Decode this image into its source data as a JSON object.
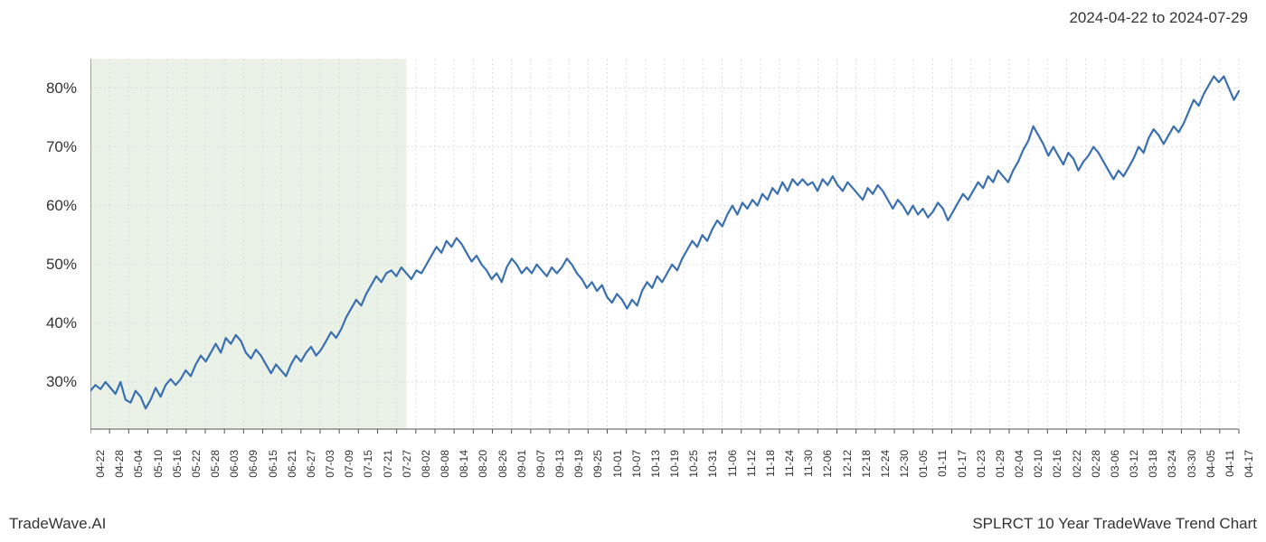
{
  "header": {
    "date_range": "2024-04-22 to 2024-07-29"
  },
  "footer": {
    "left": "TradeWave.AI",
    "right": "SPLRCT 10 Year TradeWave Trend Chart"
  },
  "chart": {
    "type": "line",
    "background_color": "#ffffff",
    "line_color": "#3a6fb0",
    "line_width": 2.2,
    "highlight_fill": "#d9e8d5",
    "highlight_opacity": 0.55,
    "highlight_range_x": [
      "04-22",
      "07-29"
    ],
    "grid_minor_color": "#d6d6d6",
    "grid_major_color": "#c8c8c8",
    "grid_dash": "2,3",
    "axis_color": "#555555",
    "tick_color": "#555555",
    "label_color": "#333333",
    "ylim": [
      22,
      85
    ],
    "ytick_step": 10,
    "ytick_format": "percent",
    "yticks": [
      30,
      40,
      50,
      60,
      70,
      80
    ],
    "title_fontsize": 17,
    "xlabel_fontsize": 12,
    "xlabel_rotation": -90,
    "xticks": [
      "04-22",
      "04-28",
      "05-04",
      "05-10",
      "05-16",
      "05-22",
      "05-28",
      "06-03",
      "06-09",
      "06-15",
      "06-21",
      "06-27",
      "07-03",
      "07-09",
      "07-15",
      "07-21",
      "07-27",
      "08-02",
      "08-08",
      "08-14",
      "08-20",
      "08-26",
      "09-01",
      "09-07",
      "09-13",
      "09-19",
      "09-25",
      "10-01",
      "10-07",
      "10-13",
      "10-19",
      "10-25",
      "10-31",
      "11-06",
      "11-12",
      "11-18",
      "11-24",
      "11-30",
      "12-06",
      "12-12",
      "12-18",
      "12-24",
      "12-30",
      "01-05",
      "01-11",
      "01-17",
      "01-23",
      "01-29",
      "02-04",
      "02-10",
      "02-16",
      "02-22",
      "02-28",
      "03-06",
      "03-12",
      "03-18",
      "03-24",
      "03-30",
      "04-05",
      "04-11",
      "04-17"
    ],
    "series": [
      {
        "name": "trend",
        "values": [
          28.5,
          29.5,
          28.8,
          30.0,
          29.0,
          28.0,
          30.0,
          27.0,
          26.5,
          28.5,
          27.5,
          25.5,
          27.0,
          29.0,
          27.5,
          29.5,
          30.5,
          29.5,
          30.5,
          32.0,
          31.0,
          33.0,
          34.5,
          33.5,
          35.0,
          36.5,
          35.0,
          37.5,
          36.5,
          38.0,
          37.0,
          35.0,
          34.0,
          35.5,
          34.5,
          33.0,
          31.5,
          33.0,
          32.0,
          31.0,
          33.0,
          34.5,
          33.5,
          35.0,
          36.0,
          34.5,
          35.5,
          37.0,
          38.5,
          37.5,
          39.0,
          41.0,
          42.5,
          44.0,
          43.0,
          45.0,
          46.5,
          48.0,
          47.0,
          48.5,
          49.0,
          48.0,
          49.5,
          48.5,
          47.5,
          49.0,
          48.5,
          50.0,
          51.5,
          53.0,
          52.0,
          54.0,
          53.0,
          54.5,
          53.5,
          52.0,
          50.5,
          51.5,
          50.0,
          49.0,
          47.5,
          48.5,
          47.0,
          49.5,
          51.0,
          50.0,
          48.5,
          49.5,
          48.5,
          50.0,
          49.0,
          48.0,
          49.5,
          48.5,
          49.5,
          51.0,
          50.0,
          48.5,
          47.5,
          46.0,
          47.0,
          45.5,
          46.5,
          44.5,
          43.5,
          45.0,
          44.0,
          42.5,
          44.0,
          43.0,
          45.5,
          47.0,
          46.0,
          48.0,
          47.0,
          48.5,
          50.0,
          49.0,
          51.0,
          52.5,
          54.0,
          53.0,
          55.0,
          54.0,
          56.0,
          57.5,
          56.5,
          58.5,
          60.0,
          58.5,
          60.5,
          59.5,
          61.0,
          60.0,
          62.0,
          61.0,
          63.0,
          62.0,
          64.0,
          62.5,
          64.5,
          63.5,
          64.5,
          63.5,
          64.0,
          62.5,
          64.5,
          63.5,
          65.0,
          63.5,
          62.5,
          64.0,
          63.0,
          62.0,
          61.0,
          63.0,
          62.0,
          63.5,
          62.5,
          61.0,
          59.5,
          61.0,
          60.0,
          58.5,
          60.0,
          58.5,
          59.5,
          58.0,
          59.0,
          60.5,
          59.5,
          57.5,
          59.0,
          60.5,
          62.0,
          61.0,
          62.5,
          64.0,
          63.0,
          65.0,
          64.0,
          66.0,
          65.0,
          64.0,
          66.0,
          67.5,
          69.5,
          71.0,
          73.5,
          72.0,
          70.5,
          68.5,
          70.0,
          68.5,
          67.0,
          69.0,
          68.0,
          66.0,
          67.5,
          68.5,
          70.0,
          69.0,
          67.5,
          66.0,
          64.5,
          66.0,
          65.0,
          66.5,
          68.0,
          70.0,
          69.0,
          71.5,
          73.0,
          72.0,
          70.5,
          72.0,
          73.5,
          72.5,
          74.0,
          76.0,
          78.0,
          77.0,
          79.0,
          80.5,
          82.0,
          81.0,
          82.0,
          80.0,
          78.0,
          79.5
        ]
      }
    ]
  }
}
